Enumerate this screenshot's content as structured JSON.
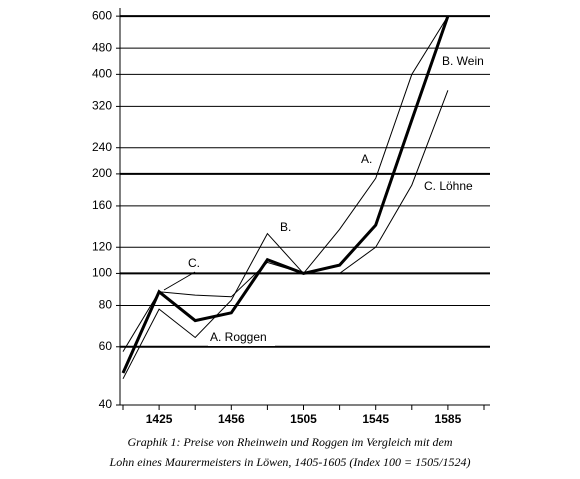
{
  "chart_data": {
    "type": "line",
    "categories": [
      null,
      "1425",
      null,
      "1456",
      null,
      "1505",
      null,
      "1545",
      null,
      "1585",
      null
    ],
    "series": [
      {
        "name": "B. Wein",
        "color": "#000000",
        "width": 3,
        "values": [
          50,
          88,
          72,
          76,
          110,
          100,
          106,
          140,
          291,
          600,
          null
        ]
      },
      {
        "name": "A. Roggen",
        "color": "#000000",
        "width": 1,
        "values": [
          48,
          78,
          64,
          83,
          132,
          100,
          136,
          194,
          400,
          600,
          null
        ]
      },
      {
        "name": "C. Löhne",
        "color": "#000000",
        "width": 1,
        "values": [
          58,
          88,
          86,
          85,
          108,
          100,
          100,
          120,
          185,
          358,
          null
        ]
      }
    ],
    "annotations": [
      "A.",
      "B.",
      "C."
    ],
    "ylim": [
      40,
      635
    ],
    "log_scale": true,
    "yticks": [
      40,
      60,
      80,
      100,
      120,
      160,
      200,
      240,
      320,
      400,
      480,
      600
    ],
    "bold_gridlines": [
      60,
      100,
      200,
      600
    ],
    "grid": true,
    "caption": [
      "Graphik 1: Preise von Rheinwein und Roggen im Vergleich mit dem",
      "Lohn eines Maurermeisters in Löwen, 1405-1605 (Index 100 = 1505/1524)"
    ]
  }
}
